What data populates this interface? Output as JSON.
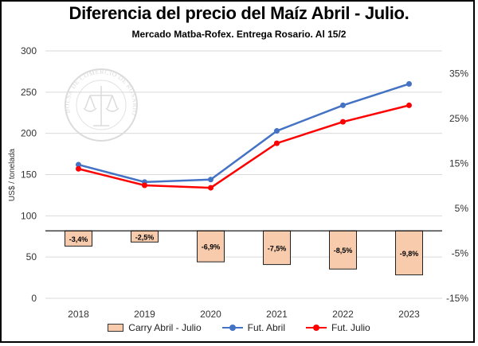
{
  "chart_data": {
    "type": "bar+line",
    "title": "Diferencia del precio del Maíz Abril - Julio.",
    "subtitle": "Mercado Matba-Rofex. Entrega Rosario. Al 15/2",
    "ylabel": "US$ / tonelada",
    "categories": [
      "2018",
      "2019",
      "2020",
      "2021",
      "2022",
      "2023"
    ],
    "y_left": {
      "min": 0,
      "max": 300,
      "ticks": [
        "0",
        "50",
        "100",
        "150",
        "200",
        "250",
        "300"
      ]
    },
    "y_right": {
      "min": -15,
      "max": 40,
      "ticks": [
        "-15%",
        "-5%",
        "5%",
        "15%",
        "25%",
        "35%"
      ]
    },
    "series": [
      {
        "name": "Carry Abril - Julio",
        "type": "bar",
        "axis": "right",
        "values": [
          -3.4,
          -2.5,
          -6.9,
          -7.5,
          -8.5,
          -9.8
        ],
        "labels": [
          "-3,4%",
          "-2,5%",
          "-6,9%",
          "-7,5%",
          "-8,5%",
          "-9,8%"
        ],
        "color": "#f8cbad"
      },
      {
        "name": "Fut. Abril",
        "type": "line",
        "axis": "left",
        "values": [
          162,
          141,
          144,
          203,
          234,
          260
        ],
        "color": "#4472c4"
      },
      {
        "name": "Fut. Julio",
        "type": "line",
        "axis": "left",
        "values": [
          157,
          137,
          134,
          188,
          214,
          234
        ],
        "color": "#ff0000"
      }
    ],
    "grid": true,
    "legend_position": "bottom"
  },
  "watermark": {
    "text": "BOLSA DE COMERCIO DE ROSARIO"
  }
}
